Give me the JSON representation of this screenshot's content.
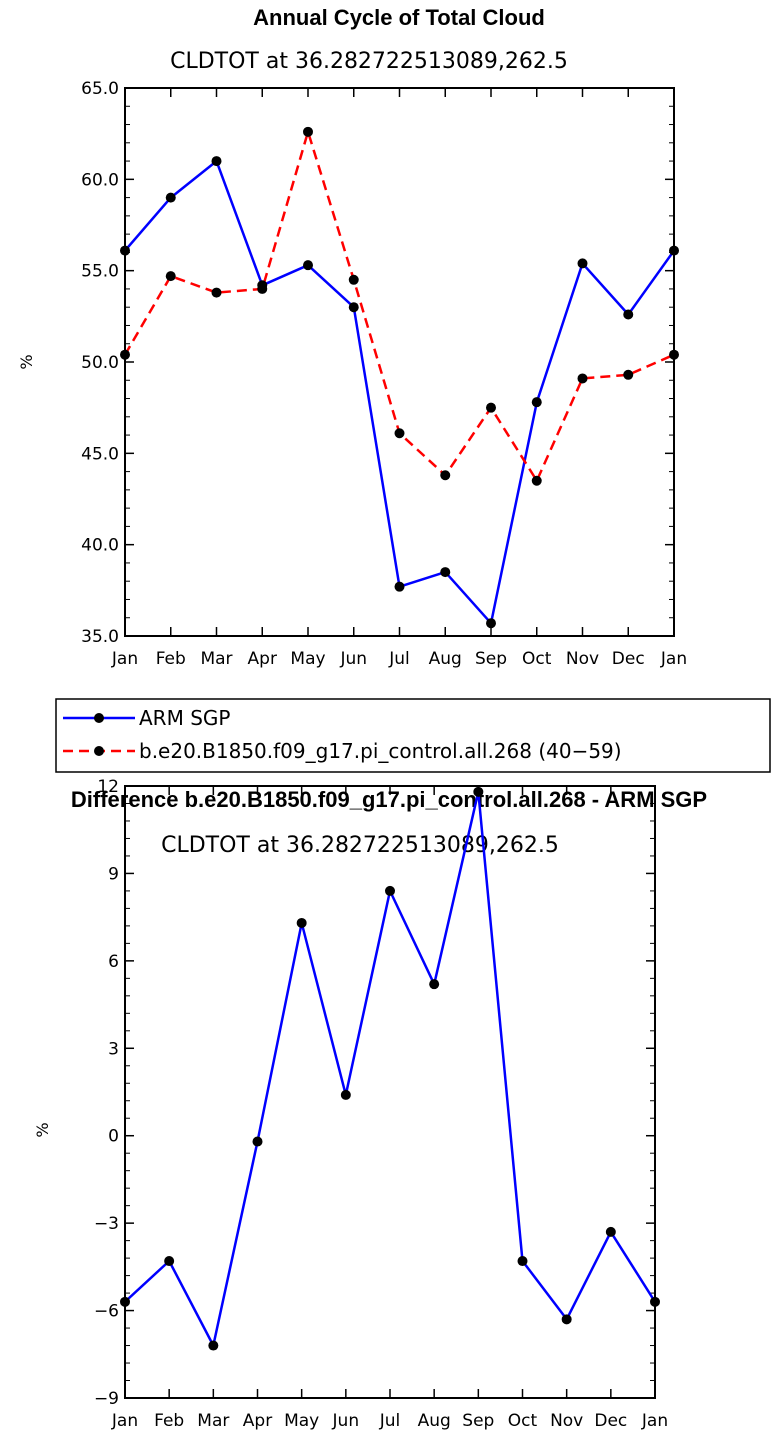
{
  "chart_data": [
    {
      "type": "line",
      "title": "Annual Cycle of Total Cloud",
      "subtitle": "CLDTOT at 36.282722513089,262.5",
      "ylabel": "%",
      "ylim": [
        35,
        65
      ],
      "yticks": [
        "35.0",
        "40.0",
        "45.0",
        "50.0",
        "55.0",
        "60.0",
        "65.0"
      ],
      "categories": [
        "Jan",
        "Feb",
        "Mar",
        "Apr",
        "May",
        "Jun",
        "Jul",
        "Aug",
        "Sep",
        "Oct",
        "Nov",
        "Dec",
        "Jan"
      ],
      "series": [
        {
          "name": "ARM SGP",
          "color": "#0000ff",
          "dash": "solid",
          "values": [
            56.1,
            59.0,
            61.0,
            54.2,
            55.3,
            53.0,
            37.7,
            38.5,
            35.7,
            47.8,
            55.4,
            52.6,
            56.1
          ]
        },
        {
          "name": "b.e20.B1850.f09_g17.pi_control.all.268 (40−59)",
          "color": "#ff0000",
          "dash": "dashed",
          "values": [
            50.4,
            54.7,
            53.8,
            54.0,
            62.6,
            54.5,
            46.1,
            43.8,
            47.5,
            43.5,
            49.1,
            49.3,
            50.4
          ]
        }
      ],
      "legend": "below"
    },
    {
      "type": "line",
      "title": "Difference b.e20.B1850.f09_g17.pi_control.all.268 - ARM SGP",
      "subtitle": "CLDTOT at 36.282722513089,262.5",
      "ylabel": "%",
      "ylim": [
        -9,
        12
      ],
      "yticks": [
        "−9",
        "−6",
        "−3",
        "0",
        "3",
        "6",
        "9",
        "12"
      ],
      "categories": [
        "Jan",
        "Feb",
        "Mar",
        "Apr",
        "May",
        "Jun",
        "Jul",
        "Aug",
        "Sep",
        "Oct",
        "Nov",
        "Dec",
        "Jan"
      ],
      "series": [
        {
          "color": "#0000ff",
          "dash": "solid",
          "values": [
            -5.7,
            -4.3,
            -7.2,
            -0.2,
            7.3,
            1.4,
            8.4,
            5.2,
            11.8,
            -4.3,
            -6.3,
            -3.3,
            -5.7
          ]
        }
      ]
    }
  ]
}
